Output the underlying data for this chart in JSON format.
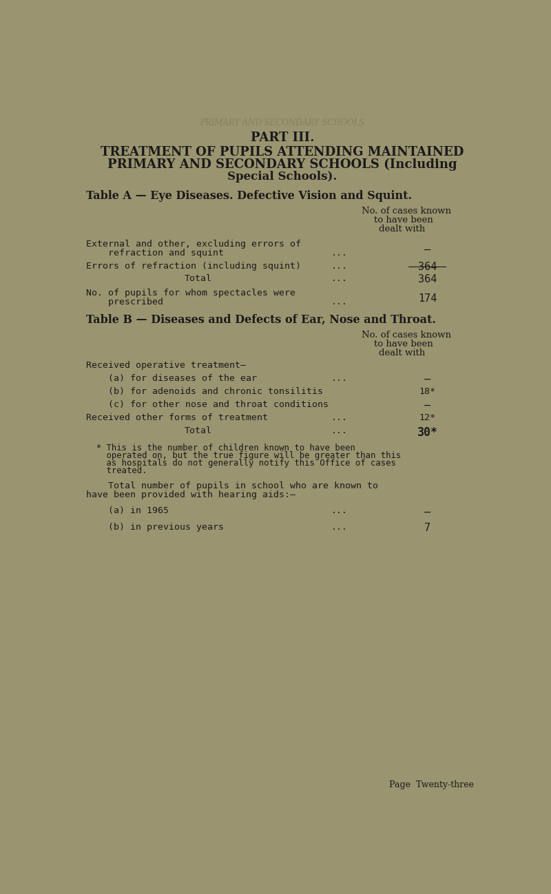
{
  "bg_color": "#9a9470",
  "text_color": "#1a1a1a",
  "page_width": 8.0,
  "page_height": 12.98,
  "watermark_text": "PRIMARY AND SECONDARY SCHOOLS",
  "part_title": "PART III.",
  "main_title_line1": "TREATMENT OF PUPILS ATTENDING MAINTAINED",
  "main_title_line2": "PRIMARY AND SECONDARY SCHOOLS (Including",
  "main_title_line3": "Special Schools).",
  "table_a_heading": "Table A — Eye Diseases. Defective Vision and Squint.",
  "col_header_line1": "No. of cases known",
  "col_header_line2": "to have been",
  "col_header_line3": "dealt with",
  "row_a1_line1": "External and other, excluding errors of",
  "row_a1_line2": "    refraction and squint",
  "row_a1_dots": "...",
  "row_a1_value": "—",
  "row_a2_text": "Errors of refraction (including squint)",
  "row_a2_dots": "...",
  "row_a2_value": "364",
  "row_a3_text": "Total",
  "row_a3_dots": "...",
  "row_a3_value": "364",
  "row_a4_line1": "No. of pupils for whom spectacles were",
  "row_a4_line2": "    prescribed",
  "row_a4_dots": "...",
  "row_a4_value": "174",
  "table_b_heading": "Table B — Diseases and Defects of Ear, Nose and Throat.",
  "col_b_header_line1": "No. of cases known",
  "col_b_header_line2": "to have been",
  "col_b_header_line3": "dealt with",
  "row_b0_text": "Received operative treatment—",
  "row_b1_text": "    (a) for diseases of the ear",
  "row_b1_dots": "...",
  "row_b1_value": "—",
  "row_b2_text": "    (b) for adenoids and chronic tonsilitis",
  "row_b2_value": "18*",
  "row_b3_text": "    (c) for other nose and throat conditions",
  "row_b3_value": "—",
  "row_b4_text": "Received other forms of treatment",
  "row_b4_dots": "...",
  "row_b4_value": "12*",
  "row_b5_text": "Total",
  "row_b5_dots": "...",
  "row_b5_value": "30*",
  "footnote_line1": "  * This is the number of children known to have been",
  "footnote_line2": "    operated on, but the true figure will be greater than this",
  "footnote_line3": "    as hospitals do not generally notify this Office of cases",
  "footnote_line4": "    treated.",
  "hearing_intro_line1": "    Total number of pupils in school who are known to",
  "hearing_intro_line2": "have been provided with hearing aids:—",
  "hearing_a_text": "    (a) in 1965",
  "hearing_a_dots": "...",
  "hearing_a_value": "—",
  "hearing_b_text": "    (b) in previous years",
  "hearing_b_dots": "...",
  "hearing_b_value": "7",
  "page_footer": "Page  Twenty-three"
}
